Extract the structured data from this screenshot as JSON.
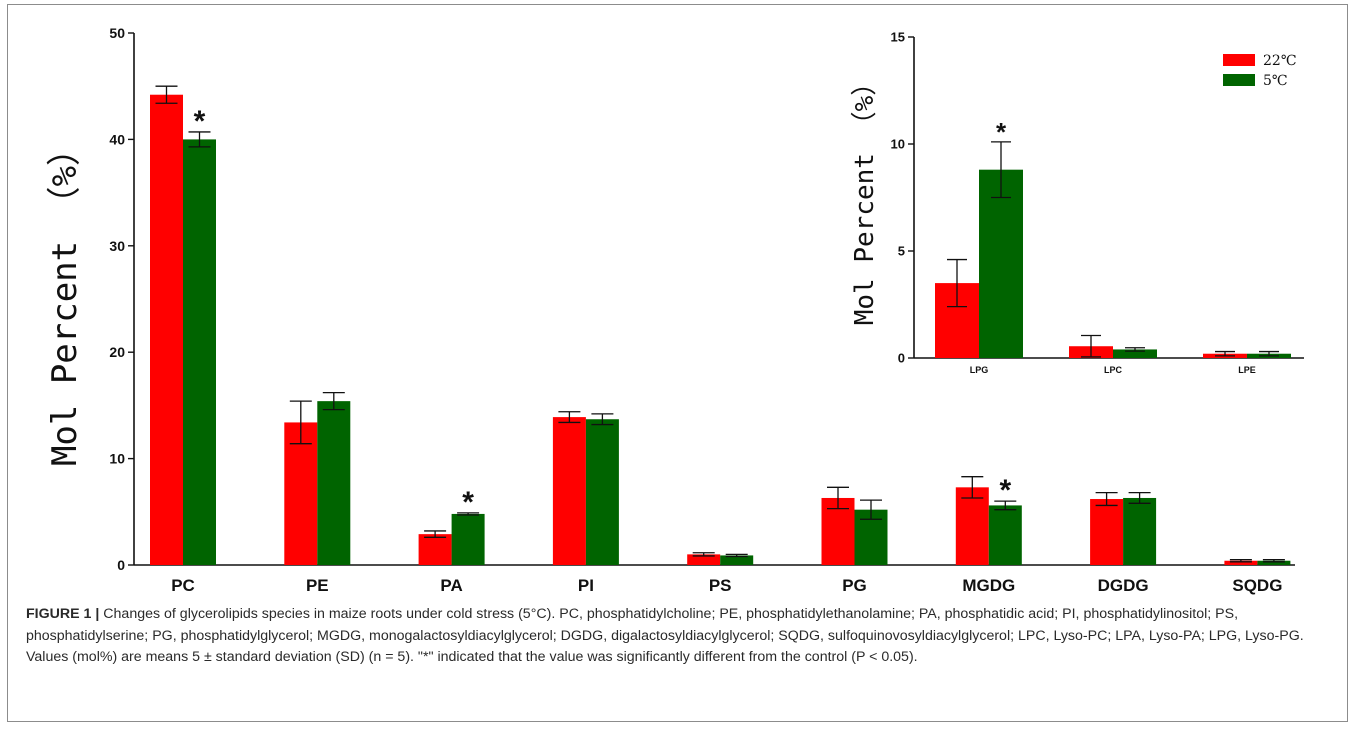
{
  "colors": {
    "control": "#ff0000",
    "cold": "#006400",
    "axis": "#111111"
  },
  "chart_data": [
    {
      "type": "bar",
      "categories": [
        "PC",
        "PE",
        "PA",
        "PI",
        "PS",
        "PG",
        "MGDG",
        "DGDG",
        "SQDG"
      ],
      "series": [
        {
          "name": "22℃",
          "values": [
            44.2,
            13.4,
            2.9,
            13.9,
            1.0,
            6.3,
            7.3,
            6.2,
            0.4
          ],
          "errors": [
            0.8,
            2.0,
            0.3,
            0.5,
            0.15,
            1.0,
            1.0,
            0.6,
            0.1
          ]
        },
        {
          "name": "5℃",
          "values": [
            40.0,
            15.4,
            4.8,
            13.7,
            0.9,
            5.2,
            5.6,
            6.3,
            0.4
          ],
          "errors": [
            0.7,
            0.8,
            0.1,
            0.5,
            0.1,
            0.9,
            0.4,
            0.5,
            0.1
          ]
        }
      ],
      "significant": [
        "PC",
        "PA",
        "MGDG"
      ],
      "significance_mark": "*",
      "ylabel": "Mol Percent （%）",
      "ylim": [
        0,
        50
      ],
      "yticks": [
        0,
        10,
        20,
        30,
        40,
        50
      ],
      "grid": false
    },
    {
      "type": "bar",
      "categories": [
        "LPG",
        "LPC",
        "LPE"
      ],
      "series": [
        {
          "name": "22℃",
          "values": [
            3.5,
            0.55,
            0.2
          ],
          "errors": [
            1.1,
            0.5,
            0.1
          ]
        },
        {
          "name": "5℃",
          "values": [
            8.8,
            0.4,
            0.2
          ],
          "errors": [
            1.3,
            0.08,
            0.1
          ]
        }
      ],
      "significant": [
        "LPG"
      ],
      "significance_mark": "*",
      "ylabel": "Mol Percent （%）",
      "ylim": [
        0,
        15
      ],
      "yticks": [
        0,
        5,
        10,
        15
      ],
      "legend": "top-right",
      "grid": false
    }
  ],
  "caption": {
    "label": "FIGURE 1 |",
    "text": "Changes of glycerolipids species in maize roots under cold stress (5°C). PC, phosphatidylcholine; PE, phosphatidylethanolamine; PA, phosphatidic acid; PI, phosphatidylinositol; PS, phosphatidylserine; PG, phosphatidylglycerol; MGDG, monogalactosyldiacylglycerol; DGDG, digalactosyldiacylglycerol; SQDG, sulfoquinovosyldiacylglycerol; LPC, Lyso-PC; LPA, Lyso-PA; LPG, Lyso-PG. Values (mol%) are means 5 ± standard deviation (SD) (n = 5). \"*\" indicated that the value was significantly different from the control (P < 0.05)."
  }
}
